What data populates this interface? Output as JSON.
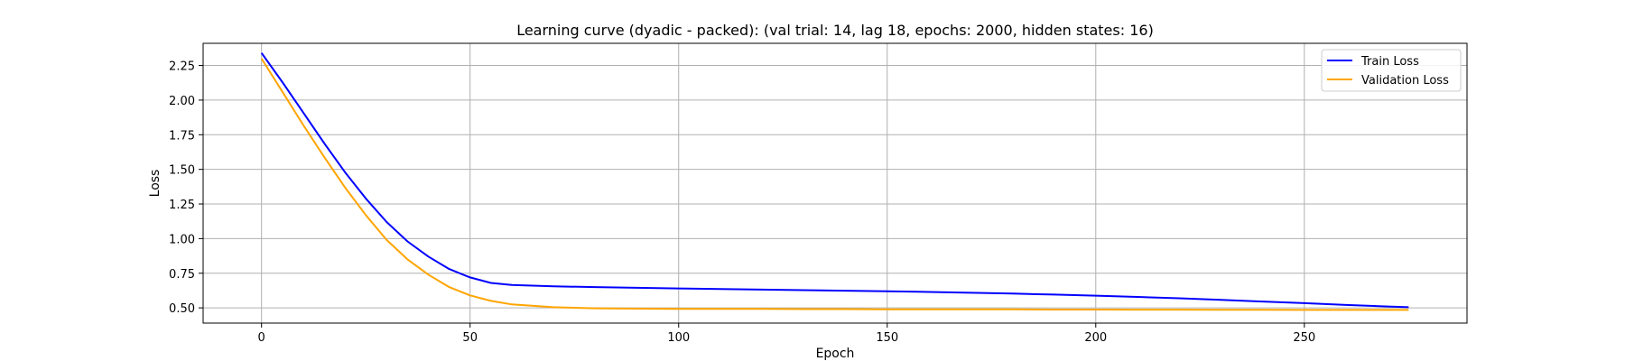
{
  "chart_data": {
    "type": "line",
    "title": "Learning curve (dyadic - packed): (val trial: 14, lag 18, epochs: 2000, hidden states: 16)",
    "xlabel": "Epoch",
    "ylabel": "Loss",
    "xlim": [
      -14,
      289
    ],
    "ylim": [
      0.39,
      2.41
    ],
    "xticks": [
      0,
      50,
      100,
      150,
      200,
      250
    ],
    "yticks": [
      0.5,
      0.75,
      1.0,
      1.25,
      1.5,
      1.75,
      2.0,
      2.25
    ],
    "grid": true,
    "legend_position": "top-right",
    "series": [
      {
        "name": "Train Loss",
        "color": "#0000ff",
        "x": [
          0,
          5,
          10,
          15,
          20,
          25,
          30,
          35,
          40,
          45,
          50,
          55,
          60,
          70,
          80,
          90,
          100,
          110,
          120,
          130,
          140,
          150,
          160,
          170,
          180,
          190,
          200,
          210,
          220,
          230,
          240,
          250,
          260,
          270,
          275
        ],
        "y": [
          2.34,
          2.13,
          1.91,
          1.69,
          1.48,
          1.29,
          1.12,
          0.98,
          0.87,
          0.78,
          0.72,
          0.68,
          0.665,
          0.655,
          0.65,
          0.645,
          0.64,
          0.636,
          0.632,
          0.628,
          0.624,
          0.62,
          0.615,
          0.609,
          0.603,
          0.596,
          0.588,
          0.579,
          0.569,
          0.558,
          0.546,
          0.534,
          0.521,
          0.51,
          0.505
        ]
      },
      {
        "name": "Validation Loss",
        "color": "#ffa500",
        "x": [
          0,
          5,
          10,
          15,
          20,
          25,
          30,
          35,
          40,
          45,
          50,
          55,
          60,
          70,
          80,
          90,
          100,
          110,
          120,
          130,
          140,
          150,
          160,
          170,
          180,
          190,
          200,
          210,
          220,
          230,
          240,
          250,
          260,
          270,
          275
        ],
        "y": [
          2.3,
          2.06,
          1.82,
          1.59,
          1.37,
          1.17,
          0.99,
          0.85,
          0.74,
          0.65,
          0.59,
          0.55,
          0.525,
          0.505,
          0.497,
          0.494,
          0.493,
          0.492,
          0.492,
          0.491,
          0.491,
          0.49,
          0.49,
          0.489,
          0.489,
          0.488,
          0.488,
          0.487,
          0.487,
          0.486,
          0.486,
          0.485,
          0.485,
          0.485,
          0.485
        ]
      }
    ]
  }
}
